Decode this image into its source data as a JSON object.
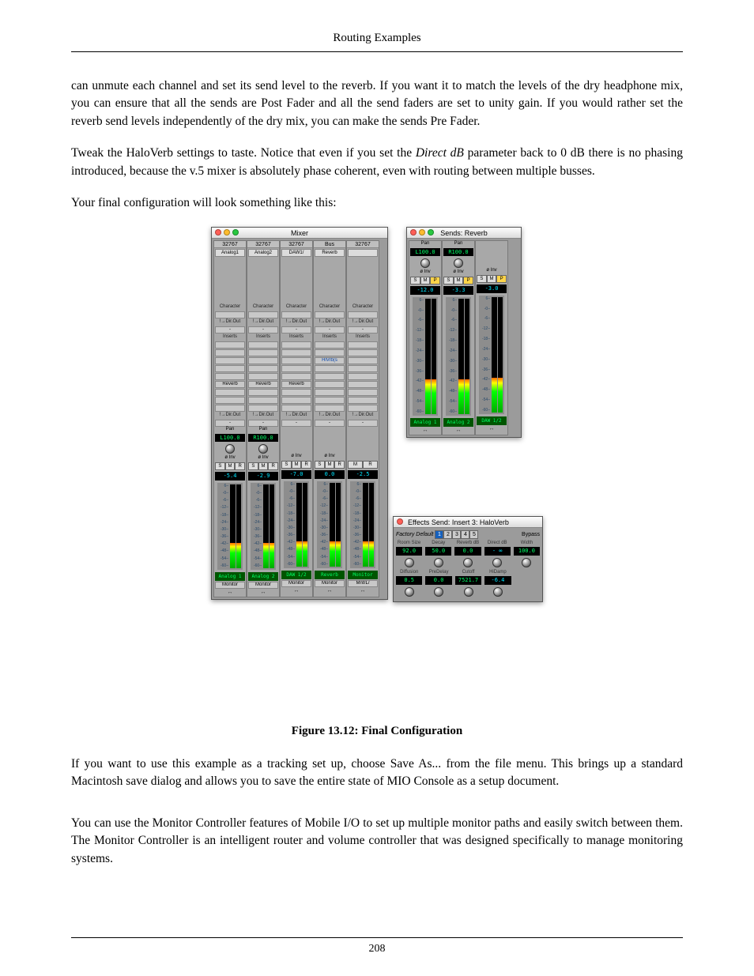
{
  "header": {
    "title": "Routing Examples"
  },
  "paragraphs": {
    "p1": "can unmute each channel and set its send level to the reverb. If you want it to match the levels of the dry headphone mix, you can ensure that all the sends are Post Fader and all the send faders are set to unity gain. If you would rather set the reverb send levels independently of the dry mix, you can make the sends Pre Fader.",
    "p2a": "Tweak the HaloVerb settings to taste. Notice that even if you set the ",
    "p2_term": "Direct dB",
    "p2b": " parameter back to 0 dB there is no phasing introduced, because the v.5 mixer is absolutely phase coherent, even with routing between multiple busses.",
    "p3": "Your final configuration will look something like this:",
    "p4": "If you want to use this example as a tracking set up, choose Save As... from the file menu. This brings up a standard Macintosh save dialog and allows you to save the entire state of MIO Console as a setup document.",
    "p5": "You can use the Monitor Controller features of Mobile I/O to set up multiple monitor paths and easily switch between them. The Monitor Controller is an intelligent router and volume controller that was designed specifically to manage monitoring systems."
  },
  "figure": {
    "caption": "Figure 13.12: Final Configuration"
  },
  "mixer": {
    "title": "Mixer",
    "top_num": "32767",
    "lbl_character": "Character",
    "lbl_dirout": "!→Dir.Out",
    "lbl_inserts": "Inserts",
    "lbl_inv": "ø Inv",
    "lbl_pan": "Pan",
    "scale": [
      "6",
      "-0",
      "-6",
      "-12",
      "-18",
      "-24",
      "-30",
      "-36",
      "-42",
      "-48",
      "-54",
      "-60"
    ],
    "channels": [
      {
        "sel": "Analog1",
        "hlvrb": "",
        "reverb": "Reverb",
        "gain": "-5.4",
        "pan": "L100.0",
        "name": "Analog 1",
        "route": "Monitor",
        "smp": [
          "S",
          "M",
          "R"
        ]
      },
      {
        "sel": "Analog2",
        "hlvrb": "",
        "reverb": "Reverb",
        "gain": "-2.9",
        "pan": "R100.0",
        "name": "Analog 2",
        "route": "Monitor",
        "smp": [
          "S",
          "M",
          "R"
        ]
      },
      {
        "sel": "DAW1/",
        "hlvrb": "",
        "reverb": "Reverb",
        "gain": "-7.0",
        "pan": "",
        "name": "DAW 1/2",
        "route": "Monitor",
        "smp": [
          "S",
          "M",
          "R"
        ]
      },
      {
        "sel": "Reverb",
        "hlvrb": "HlVrb(s",
        "reverb": "",
        "gain": "0.0",
        "pan": "",
        "name": "Reverb",
        "route": "Monitor",
        "smp": [
          "S",
          "M",
          "R"
        ],
        "is_bus": true,
        "top": "Bus"
      },
      {
        "sel": "",
        "hlvrb": "",
        "reverb": "",
        "gain": "-2.5",
        "pan": "",
        "name": "Monitor",
        "route": "MntrL/",
        "smp": [
          "M",
          "R"
        ]
      }
    ]
  },
  "sends": {
    "title": "Sends: Reverb",
    "channels": [
      {
        "pan": "L100.0",
        "gain": "-12.0",
        "name": "Analog 1",
        "smp": [
          "S",
          "M",
          "P"
        ]
      },
      {
        "pan": "R100.0",
        "gain": "-3.3",
        "name": "Analog 2",
        "smp": [
          "S",
          "M",
          "P"
        ]
      },
      {
        "pan": "",
        "gain": "-3.0",
        "name": "DAW 1/2",
        "smp": [
          "S",
          "M",
          "P"
        ]
      }
    ]
  },
  "haloverb": {
    "title": "Effects Send: Insert 3: HaloVerb",
    "preset_label": "Factory Default",
    "preset_btns": [
      "1",
      "2",
      "3",
      "4",
      "5"
    ],
    "bypass": "Bypass",
    "row1": [
      {
        "label": "Room Size",
        "val": "92.0",
        "cls": ""
      },
      {
        "label": "Decay",
        "val": "50.0",
        "cls": ""
      },
      {
        "label": "Reverb dB",
        "val": "0.0",
        "cls": ""
      },
      {
        "label": "Direct dB",
        "val": "- ∞",
        "cls": "cy"
      },
      {
        "label": "Width",
        "val": "100.0",
        "cls": ""
      }
    ],
    "row2": [
      {
        "label": "Diffusion",
        "val": "0.5",
        "cls": ""
      },
      {
        "label": "PreDelay",
        "val": "0.0",
        "cls": ""
      },
      {
        "label": "Cutoff",
        "val": "7521.7",
        "cls": ""
      },
      {
        "label": "HiDamp",
        "val": "-6.4",
        "cls": "cy"
      }
    ]
  },
  "footer": {
    "page": "208"
  }
}
